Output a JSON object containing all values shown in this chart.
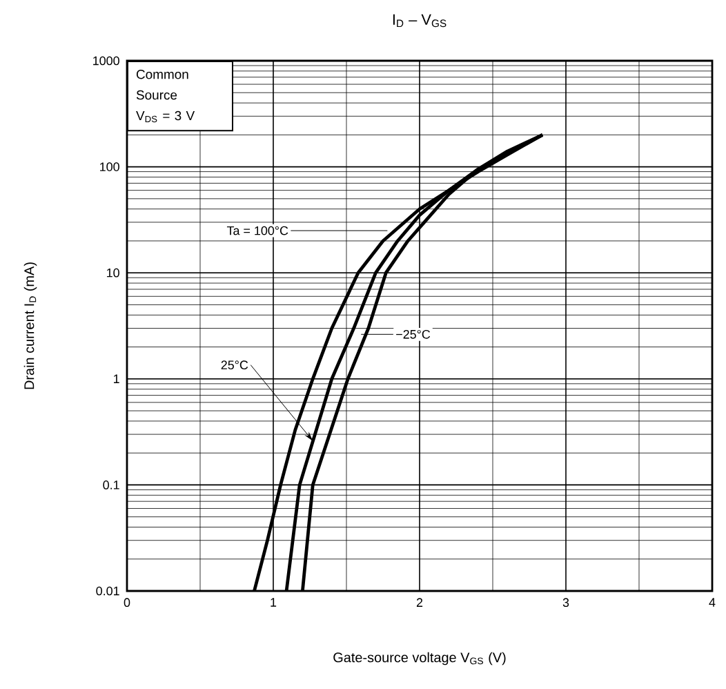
{
  "chart_data": {
    "type": "line",
    "title": "I$_{D}$ – V$_{GS}$",
    "xlabel": "Gate-source voltage   V$_{GS}$   (V)",
    "ylabel": "Drain current   I$_{D}$   (mA)",
    "annotations": [
      "Common Source",
      "V$_{DS}$ = 3 V",
      "−25°C",
      {
        "text": "Ta = 100°C",
        "x": 1.78,
        "y": 25
      },
      {
        "text": "25°C",
        "x": 1.27,
        "y": 0.26
      }
    ],
    "series": [
      {
        "color": "#000000",
        "x": [
          0.87,
          0.96,
          1.05,
          1.15,
          1.27,
          1.4,
          1.58,
          1.75,
          2.0,
          2.2,
          2.4,
          2.6,
          2.84
        ],
        "values": [
          0.01,
          0.03,
          0.1,
          0.33,
          1,
          3,
          10,
          20,
          40,
          60,
          90,
          130,
          200
        ]
      },
      {
        "color": "#000000",
        "x": [
          1.09,
          1.18,
          1.4,
          1.55,
          1.7,
          1.85,
          2.0,
          2.2,
          2.4,
          2.6,
          2.84
        ],
        "values": [
          0.01,
          0.1,
          1,
          3,
          10,
          20,
          35,
          60,
          95,
          135,
          200
        ]
      },
      {
        "color": "#000000",
        "x": [
          1.2,
          1.27,
          1.51,
          1.65,
          1.77,
          1.92,
          2.05,
          2.2,
          2.4,
          2.6,
          2.84
        ],
        "values": [
          0.01,
          0.1,
          1,
          3,
          10,
          20,
          32,
          55,
          95,
          140,
          200
        ]
      }
    ],
    "xlim": [
      0,
      4
    ],
    "ylim": [
      0.01,
      1000
    ],
    "xticks": [
      0,
      1,
      2,
      3,
      4
    ],
    "yticks": [
      0.01,
      0.1,
      1,
      10,
      100,
      1000
    ],
    "log": "y",
    "grid": true,
    "marker": "none",
    "line_style": "solid"
  }
}
